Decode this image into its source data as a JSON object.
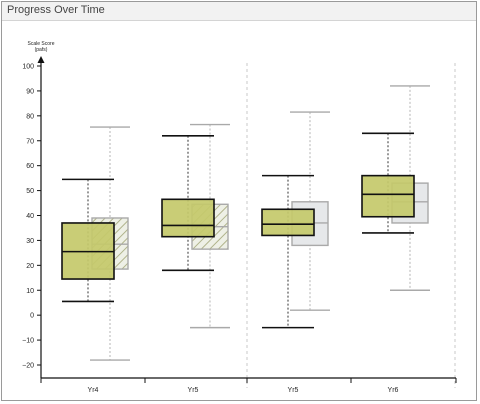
{
  "panel": {
    "title": "Progress Over Time"
  },
  "chart_data": {
    "type": "box",
    "ylabel_lines": [
      "Scale Score",
      "(pafs)"
    ],
    "ylim": [
      -24,
      102
    ],
    "yticks": [
      -20,
      -10,
      0,
      10,
      20,
      30,
      40,
      50,
      60,
      70,
      80,
      90,
      100
    ],
    "categories": [
      "Yr4",
      "Yr5",
      "Yr5",
      "Yr6"
    ],
    "colors": {
      "primary_fill": "#c4c96a",
      "primary_stroke": "#111111",
      "secondary_fill": "#e6e8ea",
      "secondary_stroke": "#a9a9a9",
      "hatch": "#b0b38a"
    },
    "groups": [
      {
        "category": "Yr4",
        "primary": {
          "min": 5.5,
          "q1": 14.5,
          "median": 25.5,
          "q3": 37,
          "max": 54.5
        },
        "secondary": {
          "min": -18,
          "q1": 18.5,
          "median": 28.5,
          "q3": 39,
          "max": 75.5,
          "hatched": true
        }
      },
      {
        "category": "Yr5",
        "primary": {
          "min": 18,
          "q1": 31.5,
          "median": 36,
          "q3": 46.5,
          "max": 72
        },
        "secondary": {
          "min": -5,
          "q1": 26.5,
          "median": 35.5,
          "q3": 44.5,
          "max": 76.5,
          "hatched": true
        }
      },
      {
        "category": "Yr5",
        "primary": {
          "min": -5,
          "q1": 32,
          "median": 36.5,
          "q3": 42.5,
          "max": 56
        },
        "secondary": {
          "min": 2,
          "q1": 28,
          "median": 37,
          "q3": 45.5,
          "max": 81.5,
          "hatched": false
        }
      },
      {
        "category": "Yr6",
        "primary": {
          "min": 33,
          "q1": 39.5,
          "median": 48.5,
          "q3": 56,
          "max": 73
        },
        "secondary": {
          "min": 10,
          "q1": 37,
          "median": 45.5,
          "q3": 53,
          "max": 92,
          "hatched": false
        }
      }
    ]
  }
}
